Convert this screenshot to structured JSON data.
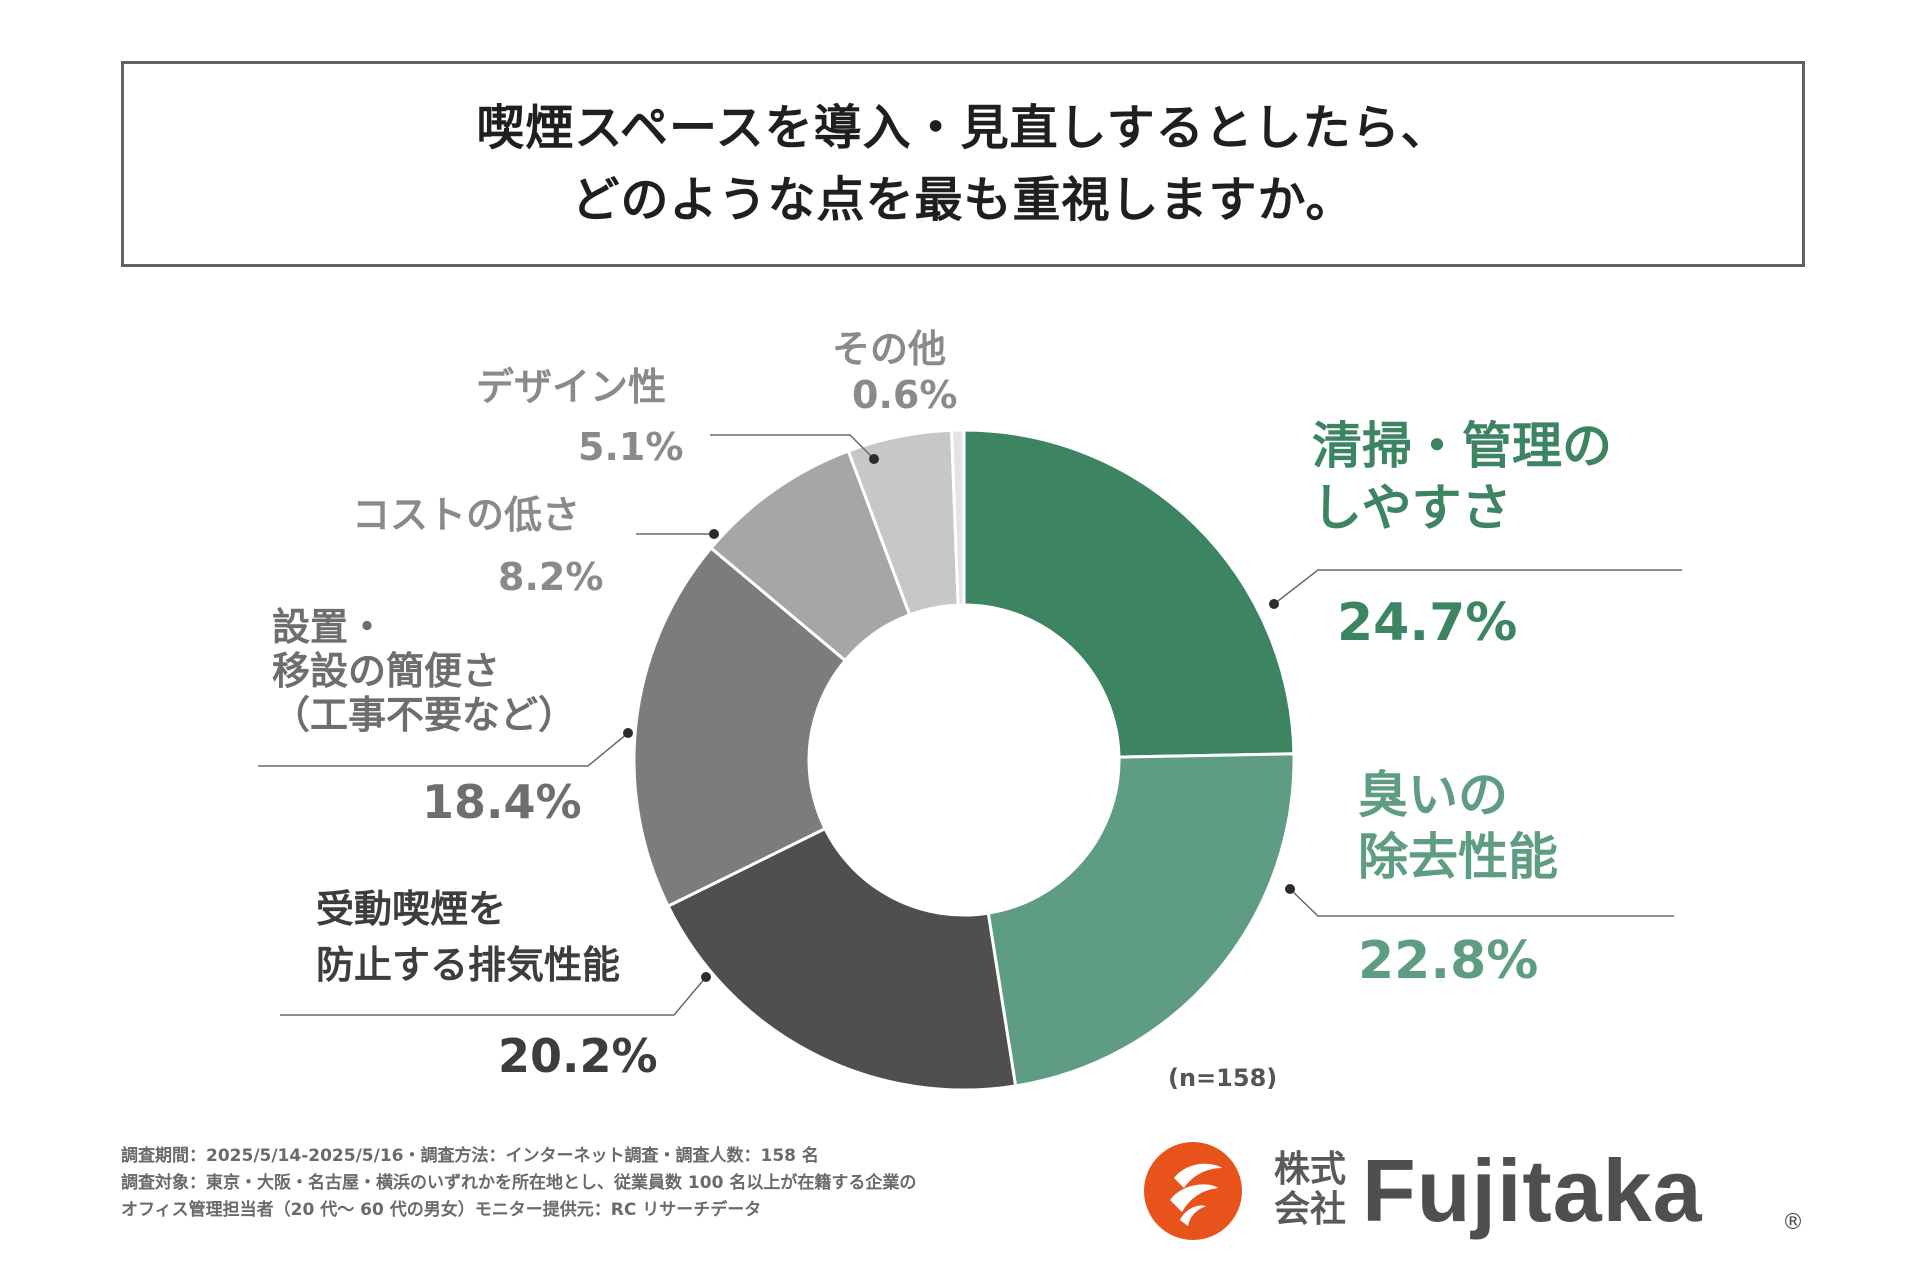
{
  "title": {
    "line1": "喫煙スペースを導入・見直しするとしたら、",
    "line2": "どのような点を最も重視しますか。"
  },
  "chart_data": {
    "type": "pie",
    "variant": "donut",
    "title": "喫煙スペースを導入・見直しするとしたら、どのような点を最も重視しますか。",
    "n_label": "(n=158)",
    "slices": [
      {
        "label_lines": [
          "清掃・管理の",
          "しやすさ"
        ],
        "value": 24.7,
        "value_label": "24.7%",
        "color": "#3c8462",
        "label_color": "#3c8462"
      },
      {
        "label_lines": [
          "臭いの",
          "除去性能"
        ],
        "value": 22.8,
        "value_label": "22.8%",
        "color": "#5f9d82",
        "label_color": "#5f9d82"
      },
      {
        "label_lines": [
          "受動喫煙を",
          "防止する排気性能"
        ],
        "value": 20.2,
        "value_label": "20.2%",
        "color": "#4f4f4f",
        "label_color": "#3d3d3d"
      },
      {
        "label_lines": [
          "設置・",
          "移設の簡便さ",
          "（工事不要など）"
        ],
        "value": 18.4,
        "value_label": "18.4%",
        "color": "#7c7c7c",
        "label_color": "#6e6e6e"
      },
      {
        "label_lines": [
          "コストの低さ"
        ],
        "value": 8.2,
        "value_label": "8.2%",
        "color": "#a6a6a6",
        "label_color": "#8a8a8a"
      },
      {
        "label_lines": [
          "デザイン性"
        ],
        "value": 5.1,
        "value_label": "5.1%",
        "color": "#c9c6c6",
        "label_color": "#8a8a8a"
      },
      {
        "label_lines": [
          "その他"
        ],
        "value": 0.6,
        "value_label": "0.6%",
        "color": "#e4e4e8",
        "label_color": "#8a8a8a"
      }
    ]
  },
  "footer": {
    "line1": "調査期間：2025/5/14-2025/5/16・調査方法：インターネット調査・調査人数：158 名",
    "line2": "調査対象：東京・大阪・名古屋・横浜のいずれかを所在地とし、従業員数 100 名以上が在籍する企業の",
    "line3": "オフィス管理担当者（20 代～ 60 代の男女）モニター提供元：RC リサーチデータ"
  },
  "logo": {
    "corp_line1": "株式",
    "corp_line2": "会社",
    "name": "Fujitaka",
    "reg": "®",
    "colors": {
      "mark": "#e8531c",
      "text": "#4f4f4f"
    }
  }
}
